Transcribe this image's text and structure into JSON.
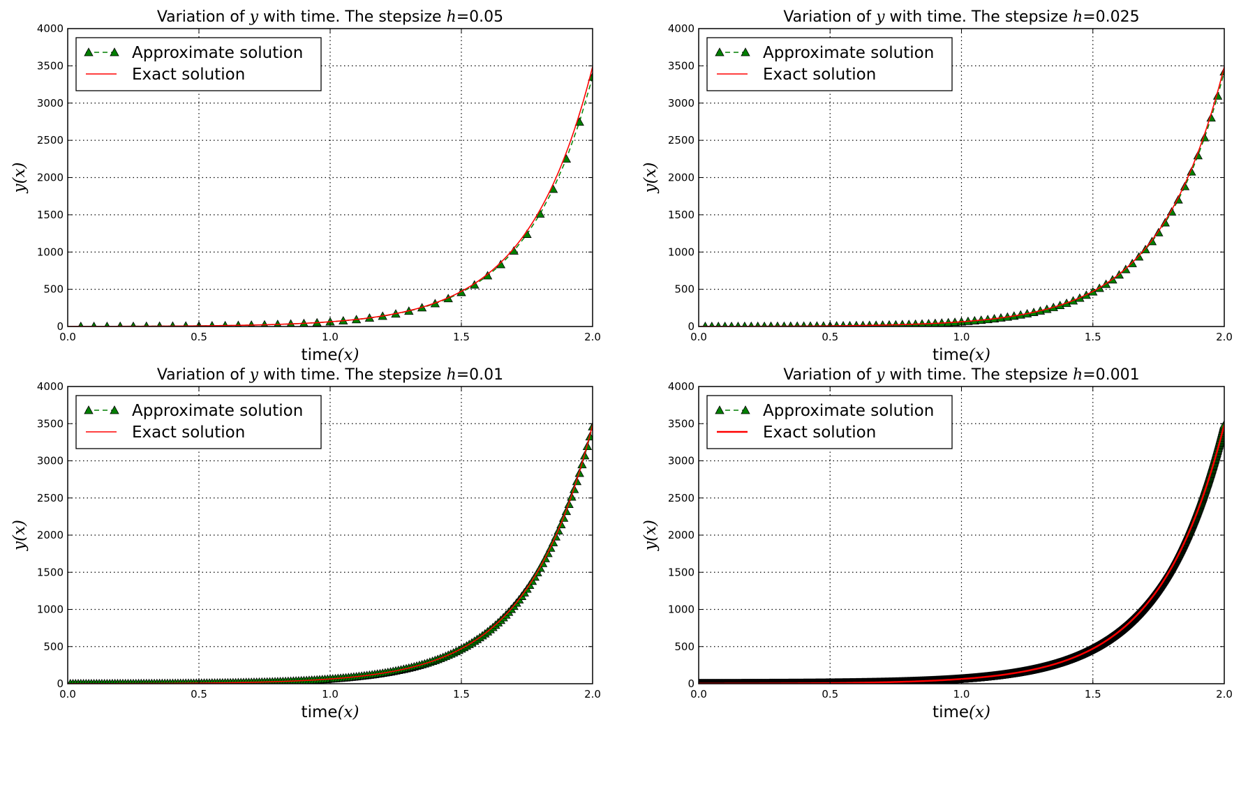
{
  "chart_data": [
    {
      "type": "line",
      "title": {
        "prefix": "Variation of ",
        "var1": "y",
        "mid": " with time. The stepsize ",
        "var2": "h",
        "suffix": "=0.05"
      },
      "stepsize": 0.05,
      "xlabel": {
        "text": "time",
        "math": "(x)"
      },
      "ylabel": {
        "text": "y(x)"
      },
      "xlim": [
        0,
        2
      ],
      "ylim": [
        0,
        4000
      ],
      "xticks": [
        "0.0",
        "0.5",
        "1.0",
        "1.5",
        "2.0"
      ],
      "yticks": [
        "0",
        "500",
        "1000",
        "1500",
        "2000",
        "2500",
        "3000",
        "3500",
        "4000"
      ],
      "grid": true,
      "legend": {
        "placement": "top-left",
        "entries": [
          "Approximate solution",
          "Exact solution"
        ]
      },
      "approx_end_value": 3350
    },
    {
      "type": "line",
      "title": {
        "prefix": "Variation of ",
        "var1": "y",
        "mid": " with time. The stepsize ",
        "var2": "h",
        "suffix": "=0.025"
      },
      "stepsize": 0.025,
      "xlabel": {
        "text": "time",
        "math": "(x)"
      },
      "ylabel": {
        "text": "y(x)"
      },
      "xlim": [
        0,
        2
      ],
      "ylim": [
        0,
        4000
      ],
      "xticks": [
        "0.0",
        "0.5",
        "1.0",
        "1.5",
        "2.0"
      ],
      "yticks": [
        "0",
        "500",
        "1000",
        "1500",
        "2000",
        "2500",
        "3000",
        "3500",
        "4000"
      ],
      "grid": true,
      "legend": {
        "placement": "top-left",
        "entries": [
          "Approximate solution",
          "Exact solution"
        ]
      },
      "approx_end_value": 3420
    },
    {
      "type": "line",
      "title": {
        "prefix": "Variation of ",
        "var1": "y",
        "mid": " with time. The stepsize ",
        "var2": "h",
        "suffix": "=0.01"
      },
      "stepsize": 0.01,
      "xlabel": {
        "text": "time",
        "math": "(x)"
      },
      "ylabel": {
        "text": "y(x)"
      },
      "xlim": [
        0,
        2
      ],
      "ylim": [
        0,
        4000
      ],
      "xticks": [
        "0.0",
        "0.5",
        "1.0",
        "1.5",
        "2.0"
      ],
      "yticks": [
        "0",
        "500",
        "1000",
        "1500",
        "2000",
        "2500",
        "3000",
        "3500",
        "4000"
      ],
      "grid": true,
      "legend": {
        "placement": "top-left",
        "entries": [
          "Approximate solution",
          "Exact solution"
        ]
      },
      "approx_end_value": 3460
    },
    {
      "type": "line",
      "title": {
        "prefix": "Variation of ",
        "var1": "y",
        "mid": " with time. The stepsize ",
        "var2": "h",
        "suffix": "=0.001"
      },
      "stepsize": 0.001,
      "xlabel": {
        "text": "time",
        "math": "(x)"
      },
      "ylabel": {
        "text": "y(x)"
      },
      "xlim": [
        0,
        2
      ],
      "ylim": [
        0,
        4000
      ],
      "xticks": [
        "0.0",
        "0.5",
        "1.0",
        "1.5",
        "2.0"
      ],
      "yticks": [
        "0",
        "500",
        "1000",
        "1500",
        "2000",
        "2500",
        "3000",
        "3500",
        "4000"
      ],
      "grid": true,
      "legend": {
        "placement": "top-left",
        "entries": [
          "Approximate solution",
          "Exact solution"
        ]
      },
      "approx_end_value": 3485
    }
  ],
  "exact_solution": {
    "x": [
      0,
      0.1,
      0.2,
      0.3,
      0.4,
      0.5,
      0.6,
      0.7,
      0.8,
      0.9,
      1.0,
      1.1,
      1.2,
      1.3,
      1.4,
      1.5,
      1.6,
      1.7,
      1.8,
      1.9,
      2.0
    ],
    "y": [
      1.17,
      1.75,
      2.6,
      3.88,
      5.8,
      8.65,
      12.9,
      19.2,
      28.7,
      42.8,
      63.9,
      95.3,
      142.2,
      212.1,
      316.4,
      472.0,
      704.1,
      1050.4,
      1567.1,
      2337.9,
      3487.8
    ]
  },
  "colors": {
    "approx": "#007f00",
    "exact": "#ff0000",
    "marker_edge": "#000000",
    "grid": "#000000"
  }
}
